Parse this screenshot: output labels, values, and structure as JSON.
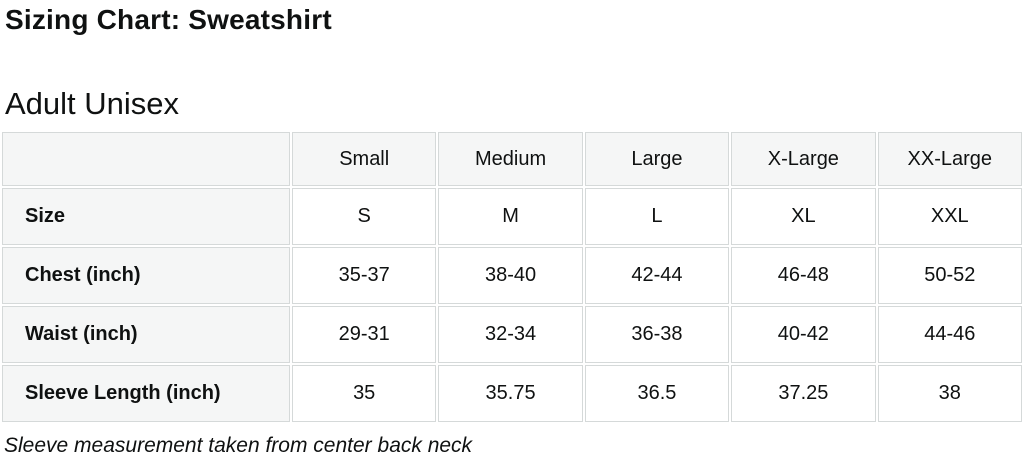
{
  "page": {
    "title": "Sizing Chart: Sweatshirt",
    "subtitle": "Adult Unisex",
    "footnote": "Sleeve measurement taken from center back neck"
  },
  "table": {
    "column_headers": [
      "Small",
      "Medium",
      "Large",
      "X-Large",
      "XX-Large"
    ],
    "rows": [
      {
        "label": "Size",
        "values": [
          "S",
          "M",
          "L",
          "XL",
          "XXL"
        ]
      },
      {
        "label": "Chest (inch)",
        "values": [
          "35-37",
          "38-40",
          "42-44",
          "46-48",
          "50-52"
        ]
      },
      {
        "label": "Waist (inch)",
        "values": [
          "29-31",
          "32-34",
          "36-38",
          "40-42",
          "44-46"
        ]
      },
      {
        "label": "Sleeve Length (inch)",
        "values": [
          "35",
          "35.75",
          "36.5",
          "37.25",
          "38"
        ]
      }
    ]
  },
  "colors": {
    "header_cell_background": "#f5f6f6",
    "cell_border": "#d5d9d9",
    "text": "#0f1111",
    "page_background": "#ffffff"
  }
}
